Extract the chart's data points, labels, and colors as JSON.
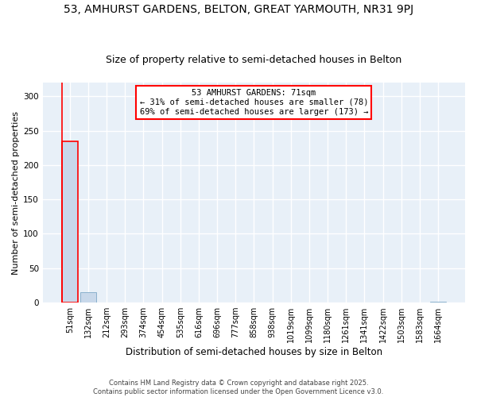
{
  "title": "53, AMHURST GARDENS, BELTON, GREAT YARMOUTH, NR31 9PJ",
  "subtitle": "Size of property relative to semi-detached houses in Belton",
  "xlabel": "Distribution of semi-detached houses by size in Belton",
  "ylabel": "Number of semi-detached properties",
  "categories": [
    "51sqm",
    "132sqm",
    "212sqm",
    "293sqm",
    "374sqm",
    "454sqm",
    "535sqm",
    "616sqm",
    "696sqm",
    "777sqm",
    "858sqm",
    "938sqm",
    "1019sqm",
    "1099sqm",
    "1180sqm",
    "1261sqm",
    "1341sqm",
    "1422sqm",
    "1503sqm",
    "1583sqm",
    "1664sqm"
  ],
  "values": [
    235,
    15,
    0,
    0,
    0,
    0,
    0,
    0,
    0,
    0,
    0,
    0,
    0,
    0,
    0,
    0,
    0,
    0,
    0,
    0,
    1
  ],
  "bar_color": "#c8d8ea",
  "bar_edge_color": "#8ab0cc",
  "highlight_bar_index": 0,
  "highlight_edge_color": "red",
  "property_name": "53 AMHURST GARDENS: 71sqm",
  "annotation_line1": "← 31% of semi-detached houses are smaller (78)",
  "annotation_line2": "69% of semi-detached houses are larger (173) →",
  "annotation_box_color": "white",
  "annotation_box_edge_color": "red",
  "footnote1": "Contains HM Land Registry data © Crown copyright and database right 2025.",
  "footnote2": "Contains public sector information licensed under the Open Government Licence v3.0.",
  "ylim": [
    0,
    320
  ],
  "yticks": [
    0,
    50,
    100,
    150,
    200,
    250,
    300
  ],
  "background_color": "#ffffff",
  "plot_bg_color": "#e8f0f8",
  "grid_color": "#ffffff",
  "title_fontsize": 10,
  "subtitle_fontsize": 9,
  "tick_fontsize": 7,
  "ylabel_fontsize": 8,
  "xlabel_fontsize": 8.5,
  "annot_fontsize": 7.5,
  "footnote_fontsize": 6
}
